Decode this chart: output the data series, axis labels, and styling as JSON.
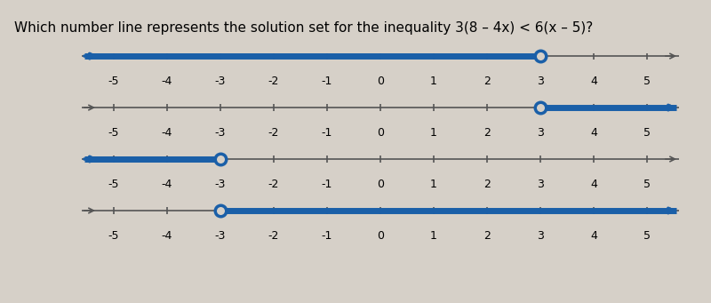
{
  "title": "Which number line represents the solution set for the inequality 3(8 – 4x) < 6(x – 5)?",
  "background_color": "#d6d0c8",
  "line_color": "#1a5fa8",
  "axis_color": "#444444",
  "number_lines": [
    {
      "open_circle_at": 3,
      "shade_direction": "left",
      "x_min": -5,
      "x_max": 5
    },
    {
      "open_circle_at": 3,
      "shade_direction": "right",
      "x_min": -5,
      "x_max": 5
    },
    {
      "open_circle_at": -3,
      "shade_direction": "left",
      "x_min": -5,
      "x_max": 5
    },
    {
      "open_circle_at": -3,
      "shade_direction": "right",
      "x_min": -5,
      "x_max": 5
    }
  ],
  "tick_positions": [
    -5,
    -4,
    -3,
    -2,
    -1,
    0,
    1,
    2,
    3,
    4,
    5
  ],
  "tick_labels": [
    "-5",
    "-4",
    "-3",
    "-2",
    "-1",
    "0",
    "1",
    "2",
    "3",
    "4",
    "5"
  ],
  "radio_color": "#888888"
}
